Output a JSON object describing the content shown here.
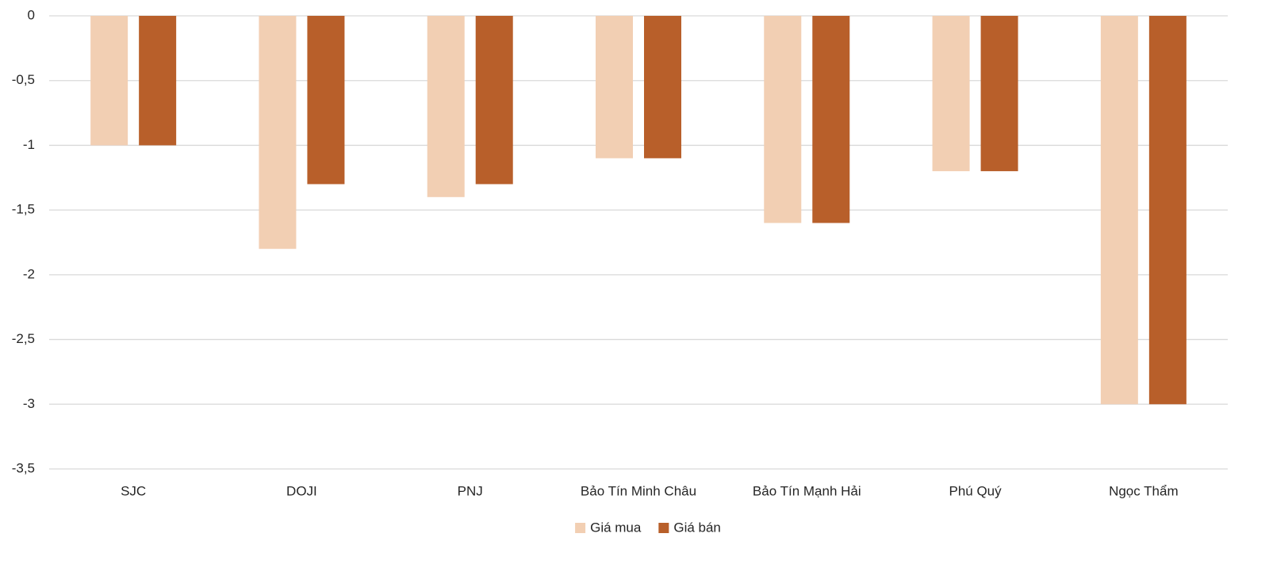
{
  "chart_data": {
    "type": "bar",
    "categories": [
      "SJC",
      "DOJI",
      "PNJ",
      "Bảo Tín Minh Châu",
      "Bảo Tín Mạnh Hải",
      "Phú Quý",
      "Ngọc Thẩm"
    ],
    "series": [
      {
        "name": "Giá mua",
        "color": "#f2cfb3",
        "values": [
          -1,
          -1.8,
          -1.4,
          -1.1,
          -1.6,
          -1.2,
          -3
        ]
      },
      {
        "name": "Giá bán",
        "color": "#b85f2a",
        "values": [
          -1,
          -1.3,
          -1.3,
          -1.1,
          -1.6,
          -1.2,
          -3
        ]
      }
    ],
    "ylim": [
      -3.5,
      0
    ],
    "yticks": [
      0,
      {
        "value": -0.5,
        "label": "-0,5"
      },
      -1,
      {
        "value": -1.5,
        "label": "-1,5"
      },
      -2,
      {
        "value": -2.5,
        "label": "-2,5"
      },
      -3,
      {
        "value": -3.5,
        "label": "-3,5"
      }
    ],
    "grid": true,
    "legend": "bottom"
  }
}
